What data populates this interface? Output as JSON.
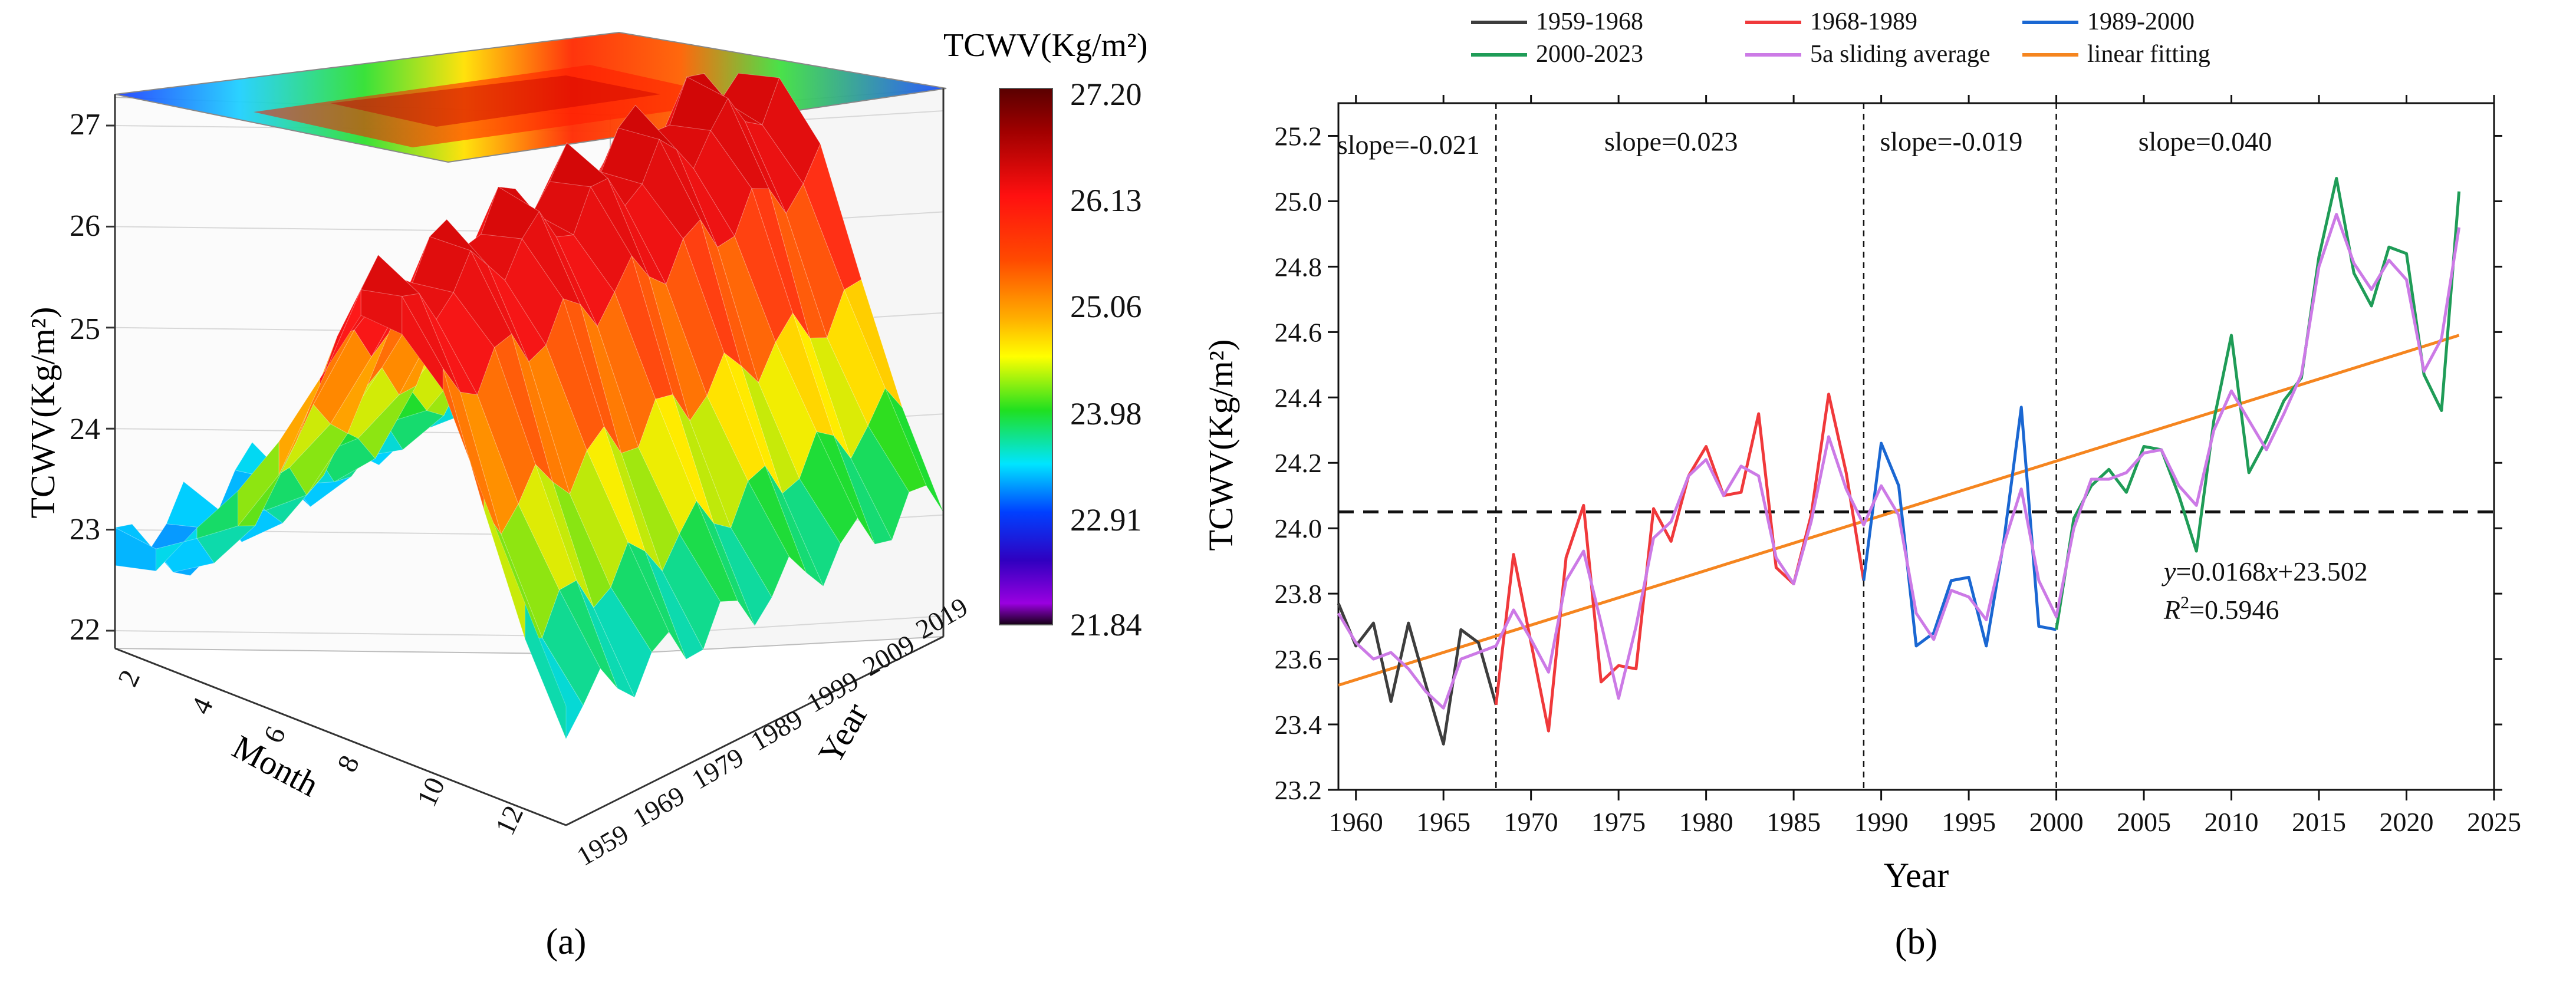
{
  "chart_data": [
    {
      "type": "surface3d",
      "panel_label": "(a)",
      "zlabel": "TCWV(Kg/m²)",
      "xlabel": "Month",
      "ylabel": "Year",
      "z_ticks": [
        "22",
        "23",
        "24",
        "25",
        "26",
        "27"
      ],
      "month_ticks": [
        "2",
        "4",
        "6",
        "8",
        "10",
        "12"
      ],
      "year_ticks": [
        "1959",
        "1969",
        "1979",
        "1989",
        "1999",
        "2009",
        "2019"
      ],
      "colorbar": {
        "title": "TCWV(Kg/m²)",
        "range": [
          21.84,
          27.2
        ],
        "tick_labels": [
          "27.20",
          "26.13",
          "25.06",
          "23.98",
          "22.91",
          "21.84"
        ],
        "colors": [
          "#5a0000",
          "#b00000",
          "#ff0000",
          "#ff7a00",
          "#ffee00",
          "#2ee82e",
          "#00e0ff",
          "#0050ff",
          "#2a00c0",
          "#8c00d8",
          "#200020"
        ]
      },
      "monthly_cycle_approx": [
        23.0,
        22.9,
        23.3,
        23.8,
        24.6,
        25.6,
        26.5,
        26.4,
        25.8,
        24.7,
        23.8,
        23.1
      ]
    },
    {
      "type": "line",
      "panel_label": "(b)",
      "xlabel": "Year",
      "ylabel": "TCWV(Kg/m²)",
      "xlim": [
        1959,
        2025
      ],
      "ylim": [
        23.2,
        25.3
      ],
      "xticks": [
        1960,
        1965,
        1970,
        1975,
        1980,
        1985,
        1990,
        1995,
        2000,
        2005,
        2010,
        2015,
        2020,
        2025
      ],
      "yticks": [
        23.2,
        23.4,
        23.6,
        23.8,
        24.0,
        24.2,
        24.4,
        24.6,
        24.8,
        25.0,
        25.2
      ],
      "tick_labels_x": [
        "1960",
        "1965",
        "1970",
        "1975",
        "1980",
        "1985",
        "1990",
        "1995",
        "2000",
        "2005",
        "2010",
        "2015",
        "2020",
        "2025"
      ],
      "tick_labels_y": [
        "23.2",
        "23.4",
        "23.6",
        "23.8",
        "24.0",
        "24.2",
        "24.4",
        "24.6",
        "24.8",
        "25.0",
        "25.2"
      ],
      "legend": [
        {
          "name": "1959-1968",
          "color": "#3d3d3d"
        },
        {
          "name": "1968-1989",
          "color": "#f0393b"
        },
        {
          "name": "1989-2000",
          "color": "#1a67d2"
        },
        {
          "name": "2000-2023",
          "color": "#1f9c57"
        },
        {
          "name": "5a sliding average",
          "color": "#cc7ae6"
        },
        {
          "name": "linear fitting",
          "color": "#f5851f"
        }
      ],
      "series": [
        {
          "name": "1959-1968",
          "color": "#3d3d3d",
          "x": [
            1959,
            1960,
            1961,
            1962,
            1963,
            1964,
            1965,
            1966,
            1967,
            1968
          ],
          "y": [
            23.77,
            23.64,
            23.71,
            23.47,
            23.71,
            23.52,
            23.34,
            23.69,
            23.65,
            23.46
          ]
        },
        {
          "name": "1968-1989",
          "color": "#f0393b",
          "x": [
            1968,
            1969,
            1970,
            1971,
            1972,
            1973,
            1974,
            1975,
            1976,
            1977,
            1978,
            1979,
            1980,
            1981,
            1982,
            1983,
            1984,
            1985,
            1986,
            1987,
            1988,
            1989
          ],
          "y": [
            23.46,
            23.92,
            23.65,
            23.38,
            23.91,
            24.07,
            23.53,
            23.58,
            23.57,
            24.06,
            23.96,
            24.16,
            24.25,
            24.1,
            24.11,
            24.35,
            23.88,
            23.83,
            24.04,
            24.41,
            24.17,
            23.84
          ]
        },
        {
          "name": "1989-2000",
          "color": "#1a67d2",
          "x": [
            1989,
            1990,
            1991,
            1992,
            1993,
            1994,
            1995,
            1996,
            1997,
            1998,
            1999,
            2000
          ],
          "y": [
            23.84,
            24.26,
            24.13,
            23.64,
            23.68,
            23.84,
            23.85,
            23.64,
            23.96,
            24.37,
            23.7,
            23.69
          ]
        },
        {
          "name": "2000-2023",
          "color": "#1f9c57",
          "x": [
            2000,
            2001,
            2002,
            2003,
            2004,
            2005,
            2006,
            2007,
            2008,
            2009,
            2010,
            2011,
            2012,
            2013,
            2014,
            2015,
            2016,
            2017,
            2018,
            2019,
            2020,
            2021,
            2022,
            2023
          ],
          "y": [
            23.69,
            24.03,
            24.13,
            24.18,
            24.11,
            24.25,
            24.24,
            24.1,
            23.93,
            24.33,
            24.59,
            24.17,
            24.27,
            24.39,
            24.46,
            24.83,
            25.07,
            24.78,
            24.68,
            24.86,
            24.84,
            24.47,
            24.36,
            25.03
          ]
        },
        {
          "name": "5a sliding average",
          "color": "#cc7ae6",
          "x": [
            1959,
            1960,
            1961,
            1962,
            1963,
            1964,
            1965,
            1966,
            1967,
            1968,
            1969,
            1970,
            1971,
            1972,
            1973,
            1974,
            1975,
            1976,
            1977,
            1978,
            1979,
            1980,
            1981,
            1982,
            1983,
            1984,
            1985,
            1986,
            1987,
            1988,
            1989,
            1990,
            1991,
            1992,
            1993,
            1994,
            1995,
            1996,
            1997,
            1998,
            1999,
            2000,
            2001,
            2002,
            2003,
            2004,
            2005,
            2006,
            2007,
            2008,
            2009,
            2010,
            2011,
            2012,
            2013,
            2014,
            2015,
            2016,
            2017,
            2018,
            2019,
            2020,
            2021,
            2022,
            2023
          ],
          "y": [
            23.74,
            23.65,
            23.6,
            23.62,
            23.57,
            23.5,
            23.45,
            23.6,
            23.62,
            23.64,
            23.75,
            23.66,
            23.56,
            23.84,
            23.93,
            23.71,
            23.48,
            23.7,
            23.97,
            24.02,
            24.16,
            24.21,
            24.1,
            24.19,
            24.16,
            23.91,
            23.83,
            24.02,
            24.28,
            24.12,
            24.01,
            24.13,
            24.04,
            23.74,
            23.66,
            23.81,
            23.79,
            23.72,
            23.95,
            24.12,
            23.84,
            23.73,
            24.0,
            24.15,
            24.15,
            24.17,
            24.23,
            24.24,
            24.13,
            24.07,
            24.3,
            24.42,
            24.33,
            24.24,
            24.35,
            24.47,
            24.8,
            24.96,
            24.81,
            24.73,
            24.82,
            24.76,
            24.48,
            24.58,
            24.92
          ]
        },
        {
          "name": "linear fitting",
          "color": "#f5851f",
          "x": [
            1959,
            2023
          ],
          "y": [
            23.52,
            24.59
          ]
        }
      ],
      "reference_lines": {
        "horizontal_mean": 24.05,
        "vertical_breaks": [
          1968,
          1989,
          2000
        ]
      },
      "annotations": [
        {
          "text": "slope=-0.021",
          "x": 1963,
          "y": 25.17
        },
        {
          "text": "slope=0.023",
          "x": 1978,
          "y": 25.18
        },
        {
          "text": "slope=-0.019",
          "x": 1994,
          "y": 25.18
        },
        {
          "text": "slope=0.040",
          "x": 2008.5,
          "y": 25.18
        }
      ],
      "equation": {
        "y_var": "y",
        "rest": "=0.0168",
        "x_var": "x",
        "tail": "+23.502"
      },
      "r2": {
        "base": "R",
        "sup": "2",
        "value": "=0.5946"
      }
    }
  ]
}
